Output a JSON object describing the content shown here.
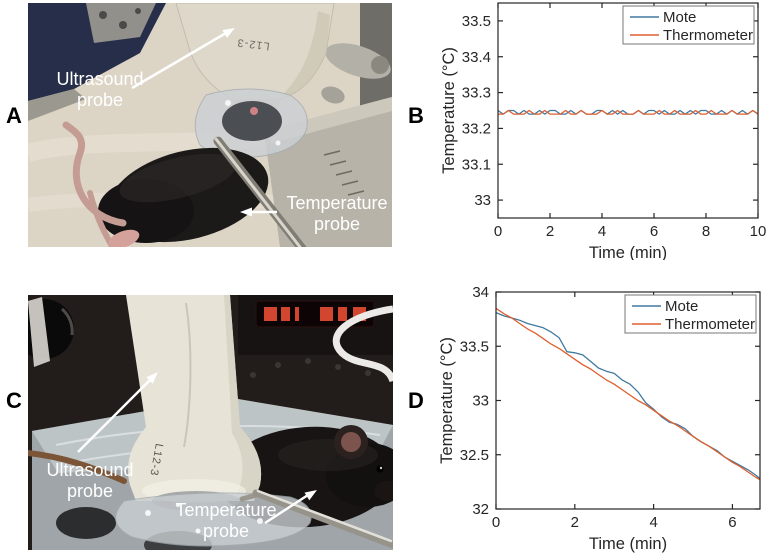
{
  "panels": {
    "a": {
      "letter": "A"
    },
    "b": {
      "letter": "B"
    },
    "c": {
      "letter": "C"
    },
    "d": {
      "letter": "D"
    }
  },
  "photos": {
    "a": {
      "ultrasound_label": "Ultrasound probe",
      "temperature_label": "Temperature probe",
      "probe_marking": "L12-3"
    },
    "c": {
      "ultrasound_label": "Ultrasound probe",
      "temperature_label": "Temperature probe",
      "probe_marking": "L12-3"
    }
  },
  "colors": {
    "mote": "#41799f",
    "thermometer": "#dd5f2e",
    "axis": "#262626"
  },
  "chart_data": [
    {
      "panel": "B",
      "type": "line",
      "title": "",
      "xlabel": "Time (min)",
      "ylabel": "Temperature (°C)",
      "xlim": [
        0,
        10
      ],
      "ylim": [
        32.95,
        33.55
      ],
      "xticks": [
        0,
        2,
        4,
        6,
        8,
        10
      ],
      "xtick_labels": [
        "0",
        "2",
        "4",
        "6",
        "8",
        "10"
      ],
      "yticks": [
        33,
        33.1,
        33.2,
        33.3,
        33.4,
        33.5
      ],
      "ytick_labels": [
        "33",
        "33.1",
        "33.2",
        "33.3",
        "33.4",
        "33.5"
      ],
      "grid": false,
      "legend_position": "top-right",
      "series": [
        {
          "name": "Mote",
          "color": "#41799f",
          "x": [
            0,
            0.2,
            0.4,
            0.6,
            0.8,
            1,
            1.2,
            1.4,
            1.6,
            1.8,
            2,
            2.2,
            2.4,
            2.6,
            2.8,
            3,
            3.2,
            3.4,
            3.6,
            3.8,
            4,
            4.2,
            4.4,
            4.6,
            4.8,
            5,
            5.2,
            5.4,
            5.6,
            5.8,
            6,
            6.2,
            6.4,
            6.6,
            6.8,
            7,
            7.2,
            7.4,
            7.6,
            7.8,
            8,
            8.2,
            8.4,
            8.6,
            8.8,
            9,
            9.2,
            9.4,
            9.6,
            9.8,
            10
          ],
          "values": [
            33.25,
            33.24,
            33.25,
            33.25,
            33.24,
            33.25,
            33.24,
            33.24,
            33.25,
            33.24,
            33.25,
            33.25,
            33.24,
            33.24,
            33.25,
            33.24,
            33.25,
            33.24,
            33.24,
            33.25,
            33.25,
            33.24,
            33.25,
            33.24,
            33.25,
            33.24,
            33.24,
            33.25,
            33.24,
            33.25,
            33.25,
            33.24,
            33.25,
            33.24,
            33.24,
            33.25,
            33.24,
            33.25,
            33.24,
            33.25,
            33.25,
            33.24,
            33.24,
            33.25,
            33.24,
            33.25,
            33.24,
            33.25,
            33.24,
            33.25,
            33.24
          ]
        },
        {
          "name": "Thermometer",
          "color": "#dd5f2e",
          "x": [
            0,
            0.2,
            0.4,
            0.6,
            0.8,
            1,
            1.2,
            1.4,
            1.6,
            1.8,
            2,
            2.2,
            2.4,
            2.6,
            2.8,
            3,
            3.2,
            3.4,
            3.6,
            3.8,
            4,
            4.2,
            4.4,
            4.6,
            4.8,
            5,
            5.2,
            5.4,
            5.6,
            5.8,
            6,
            6.2,
            6.4,
            6.6,
            6.8,
            7,
            7.2,
            7.4,
            7.6,
            7.8,
            8,
            8.2,
            8.4,
            8.6,
            8.8,
            9,
            9.2,
            9.4,
            9.6,
            9.8,
            10
          ],
          "values": [
            33.24,
            33.24,
            33.25,
            33.24,
            33.24,
            33.24,
            33.25,
            33.24,
            33.24,
            33.25,
            33.24,
            33.24,
            33.24,
            33.25,
            33.24,
            33.24,
            33.25,
            33.24,
            33.24,
            33.24,
            33.25,
            33.24,
            33.24,
            33.25,
            33.24,
            33.24,
            33.24,
            33.25,
            33.24,
            33.24,
            33.24,
            33.25,
            33.24,
            33.24,
            33.25,
            33.24,
            33.24,
            33.24,
            33.25,
            33.24,
            33.24,
            33.25,
            33.24,
            33.24,
            33.24,
            33.25,
            33.24,
            33.24,
            33.24,
            33.25,
            33.24
          ]
        }
      ]
    },
    {
      "panel": "D",
      "type": "line",
      "title": "",
      "xlabel": "Time (min)",
      "ylabel": "Temperature (°C)",
      "xlim": [
        0,
        6.7
      ],
      "ylim": [
        32,
        34
      ],
      "xticks": [
        0,
        2,
        4,
        6
      ],
      "xtick_labels": [
        "0",
        "2",
        "4",
        "6"
      ],
      "yticks": [
        32,
        32.5,
        33,
        33.5,
        34
      ],
      "ytick_labels": [
        "32",
        "32.5",
        "33",
        "33.5",
        "34"
      ],
      "grid": false,
      "legend_position": "top-right",
      "series": [
        {
          "name": "Mote",
          "color": "#41799f",
          "x": [
            0,
            0.2,
            0.4,
            0.6,
            0.8,
            1,
            1.2,
            1.4,
            1.6,
            1.8,
            2,
            2.2,
            2.4,
            2.6,
            2.8,
            3,
            3.2,
            3.4,
            3.6,
            3.8,
            4,
            4.2,
            4.4,
            4.6,
            4.8,
            5,
            5.2,
            5.4,
            5.6,
            5.8,
            6,
            6.2,
            6.4,
            6.6,
            6.7
          ],
          "values": [
            33.81,
            33.78,
            33.76,
            33.74,
            33.71,
            33.69,
            33.67,
            33.63,
            33.58,
            33.45,
            33.44,
            33.42,
            33.36,
            33.3,
            33.27,
            33.25,
            33.19,
            33.15,
            33.08,
            32.98,
            32.92,
            32.85,
            32.8,
            32.78,
            32.74,
            32.67,
            32.62,
            32.58,
            32.54,
            32.48,
            32.44,
            32.4,
            32.36,
            32.31,
            32.28
          ]
        },
        {
          "name": "Thermometer",
          "color": "#dd5f2e",
          "x": [
            0,
            0.2,
            0.4,
            0.6,
            0.8,
            1,
            1.2,
            1.4,
            1.6,
            1.8,
            2,
            2.2,
            2.4,
            2.6,
            2.8,
            3,
            3.2,
            3.4,
            3.6,
            3.8,
            4,
            4.2,
            4.4,
            4.6,
            4.8,
            5,
            5.2,
            5.4,
            5.6,
            5.8,
            6,
            6.2,
            6.4,
            6.6,
            6.7
          ],
          "values": [
            33.85,
            33.8,
            33.76,
            33.71,
            33.66,
            33.62,
            33.57,
            33.52,
            33.48,
            33.43,
            33.38,
            33.33,
            33.29,
            33.24,
            33.19,
            33.15,
            33.1,
            33.05,
            33.0,
            32.96,
            32.91,
            32.86,
            32.81,
            32.77,
            32.72,
            32.67,
            32.62,
            32.58,
            32.53,
            32.48,
            32.43,
            32.39,
            32.34,
            32.29,
            32.27
          ]
        }
      ]
    }
  ]
}
